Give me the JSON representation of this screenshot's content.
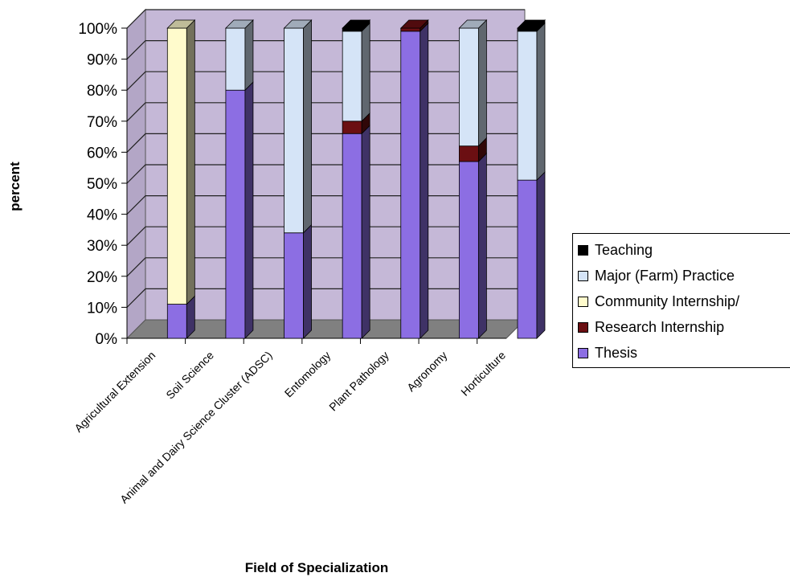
{
  "chart_data": {
    "type": "bar",
    "stacked": true,
    "percent_stacked": true,
    "style": "3d",
    "xlabel": "Field of Specialization",
    "ylabel": "percent",
    "ylim": [
      0,
      100
    ],
    "y_ticks": [
      "0%",
      "10%",
      "20%",
      "30%",
      "40%",
      "50%",
      "60%",
      "70%",
      "80%",
      "90%",
      "100%"
    ],
    "categories": [
      "Agricultural Extension",
      "Soil Science",
      "Animal and Dairy Science Cluster (ADSC)",
      "Entomology",
      "Plant Pathology",
      "Agronomy",
      "Horticulture"
    ],
    "series": [
      {
        "name": "Thesis",
        "color": "#8c6ee3",
        "values": [
          11,
          80,
          34,
          66,
          99,
          57,
          51
        ]
      },
      {
        "name": "Research Internship",
        "color": "#6b0f12",
        "values": [
          0,
          0,
          0,
          4,
          1,
          5,
          0
        ]
      },
      {
        "name": "Community Internship/",
        "color": "#fffbcc",
        "values": [
          89,
          0,
          0,
          0,
          0,
          0,
          0
        ]
      },
      {
        "name": "Major (Farm) Practice",
        "color": "#d5e4f7",
        "values": [
          0,
          20,
          66,
          29,
          0,
          38,
          48
        ]
      },
      {
        "name": "Teaching",
        "color": "#000000",
        "values": [
          0,
          0,
          0,
          1,
          0,
          0,
          1
        ]
      }
    ],
    "legend_order": [
      "Teaching",
      "Major (Farm) Practice",
      "Community Internship/",
      "Research Internship",
      "Thesis"
    ],
    "legend_position": "right",
    "grid": true,
    "wall_color": "#c5b8d7",
    "floor_color": "#808080"
  }
}
